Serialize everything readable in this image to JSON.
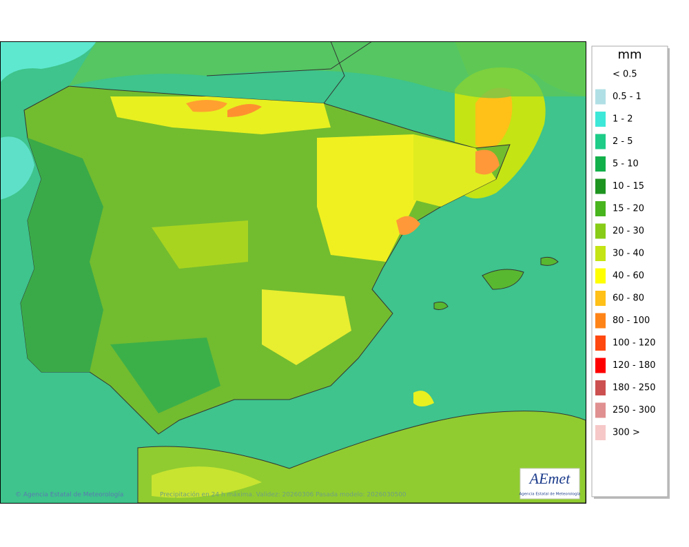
{
  "legend": {
    "title": "mm",
    "items": [
      {
        "label": "< 0.5"
      },
      {
        "label": "0.5 - 1",
        "color": "#b0e0e6"
      },
      {
        "label": "1 - 2",
        "color": "#3ee8d8"
      },
      {
        "label": "2 - 5",
        "color": "#1ecc88"
      },
      {
        "label": "5 - 10",
        "color": "#12b04a"
      },
      {
        "label": "10 - 15",
        "color": "#1e9420"
      },
      {
        "label": "15 - 20",
        "color": "#48b41e"
      },
      {
        "label": "20 - 30",
        "color": "#88cc18"
      },
      {
        "label": "30 - 40",
        "color": "#c4e414"
      },
      {
        "label": "40 - 60",
        "color": "#ffff00"
      },
      {
        "label": "60 - 80",
        "color": "#ffc018"
      },
      {
        "label": "80 - 100",
        "color": "#ff8418"
      },
      {
        "label": "100 - 120",
        "color": "#ff4810"
      },
      {
        "label": "120 - 180",
        "color": "#ff0000"
      },
      {
        "label": "180 - 250",
        "color": "#cc5050"
      },
      {
        "label": "250 - 300",
        "color": "#e09090"
      },
      {
        "label": "300 >",
        "color": "#f6c8c8"
      }
    ]
  },
  "footer": {
    "credit": "© Agencia Estatal de Meteorología",
    "caption": "Precipitación en 24 h máxima. Validez: 20260306 Pasada modelo: 2026030500"
  },
  "logo": {
    "name": "AEmet",
    "subtitle": "Agencia Estatal de Meteorología"
  }
}
